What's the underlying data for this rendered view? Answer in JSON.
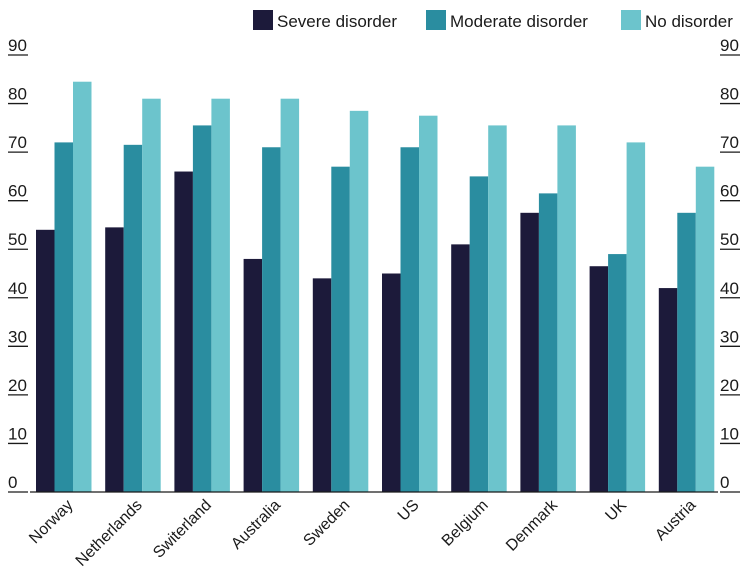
{
  "chart_data": {
    "type": "bar",
    "title": "",
    "xlabel": "",
    "ylabel": "",
    "ylim": [
      0,
      90
    ],
    "yticks": [
      0,
      10,
      20,
      30,
      40,
      50,
      60,
      70,
      80,
      90
    ],
    "y_axis_sides": "both",
    "legend_position": "top-right",
    "grid": false,
    "categories": [
      "Norway",
      "Netherlands",
      "Switerland",
      "Australia",
      "Sweden",
      "US",
      "Belgium",
      "Denmark",
      "UK",
      "Austria"
    ],
    "series": [
      {
        "name": "Severe disorder",
        "color": "#1c1a3a",
        "values": [
          54,
          54.5,
          66,
          48,
          44,
          45,
          51,
          57.5,
          46.5,
          42
        ]
      },
      {
        "name": "Moderate disorder",
        "color": "#2a8da0",
        "values": [
          72,
          71.5,
          75.5,
          71,
          67,
          71,
          65,
          61.5,
          49,
          57.5
        ]
      },
      {
        "name": "No disorder",
        "color": "#6cc4cc",
        "values": [
          84.5,
          81,
          81,
          81,
          78.5,
          77.5,
          75.5,
          75.5,
          72,
          67
        ]
      }
    ]
  }
}
